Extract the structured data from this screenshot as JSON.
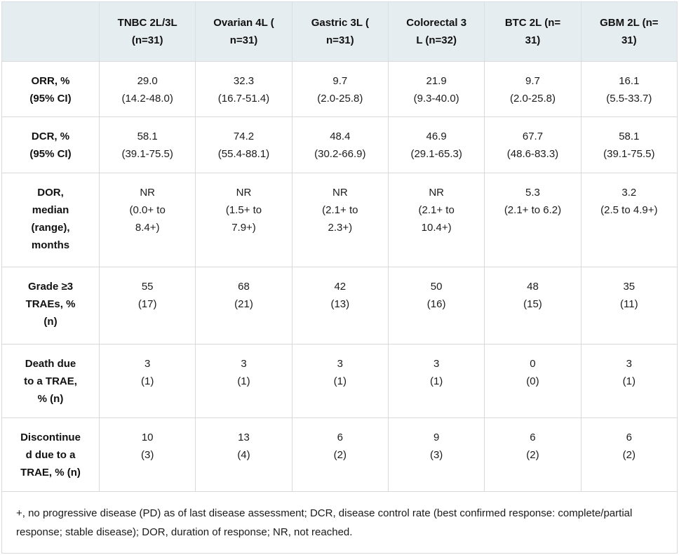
{
  "table": {
    "columns": [
      "",
      "TNBC 2L/3L\n(n=31)",
      "Ovarian 4L (\nn=31)",
      "Gastric 3L (\nn=31)",
      "Colorectal 3\nL (n=32)",
      "BTC 2L (n=\n31)",
      "GBM 2L (n=\n31)"
    ],
    "rows": [
      {
        "label": "ORR, %\n(95% CI)",
        "values": [
          "29.0\n(14.2-48.0)",
          "32.3\n(16.7-51.4)",
          "9.7\n(2.0-25.8)",
          "21.9\n(9.3-40.0)",
          "9.7\n(2.0-25.8)",
          "16.1\n(5.5-33.7)"
        ]
      },
      {
        "label": "DCR, %\n(95% CI)",
        "values": [
          "58.1\n(39.1-75.5)",
          "74.2\n(55.4-88.1)",
          "48.4\n(30.2-66.9)",
          "46.9\n(29.1-65.3)",
          "67.7\n(48.6-83.3)",
          "58.1\n(39.1-75.5)"
        ]
      },
      {
        "label": "DOR,\nmedian\n(range),\nmonths",
        "values": [
          "NR\n(0.0+ to\n8.4+)",
          "NR\n(1.5+ to\n7.9+)",
          "NR\n(2.1+ to\n2.3+)",
          "NR\n(2.1+ to\n10.4+)",
          "5.3\n(2.1+ to 6.2)",
          "3.2\n(2.5 to 4.9+)"
        ]
      },
      {
        "label": "Grade ≥3\nTRAEs, %\n(n)",
        "values": [
          "55\n(17)",
          "68\n(21)",
          "42\n(13)",
          "50\n(16)",
          "48\n(15)",
          "35\n(11)"
        ]
      },
      {
        "label": "Death due\nto a TRAE,\n% (n)",
        "values": [
          "3\n(1)",
          "3\n(1)",
          "3\n(1)",
          "3\n(1)",
          "0\n(0)",
          "3\n(1)"
        ]
      },
      {
        "label": "Discontinue\nd due to a\nTRAE, % (n)",
        "values": [
          "10\n(3)",
          "13\n(4)",
          "6\n(2)",
          "9\n(3)",
          "6\n(2)",
          "6\n(2)"
        ]
      }
    ],
    "footnote": "+, no progressive disease (PD) as of last disease assessment; DCR, disease control rate (best confirmed response: complete/partial response; stable disease); DOR, duration of response; NR, not reached."
  },
  "colors": {
    "header_bg": "#e6edf1",
    "border": "#d9d9d9",
    "text": "#1c1c1c"
  }
}
